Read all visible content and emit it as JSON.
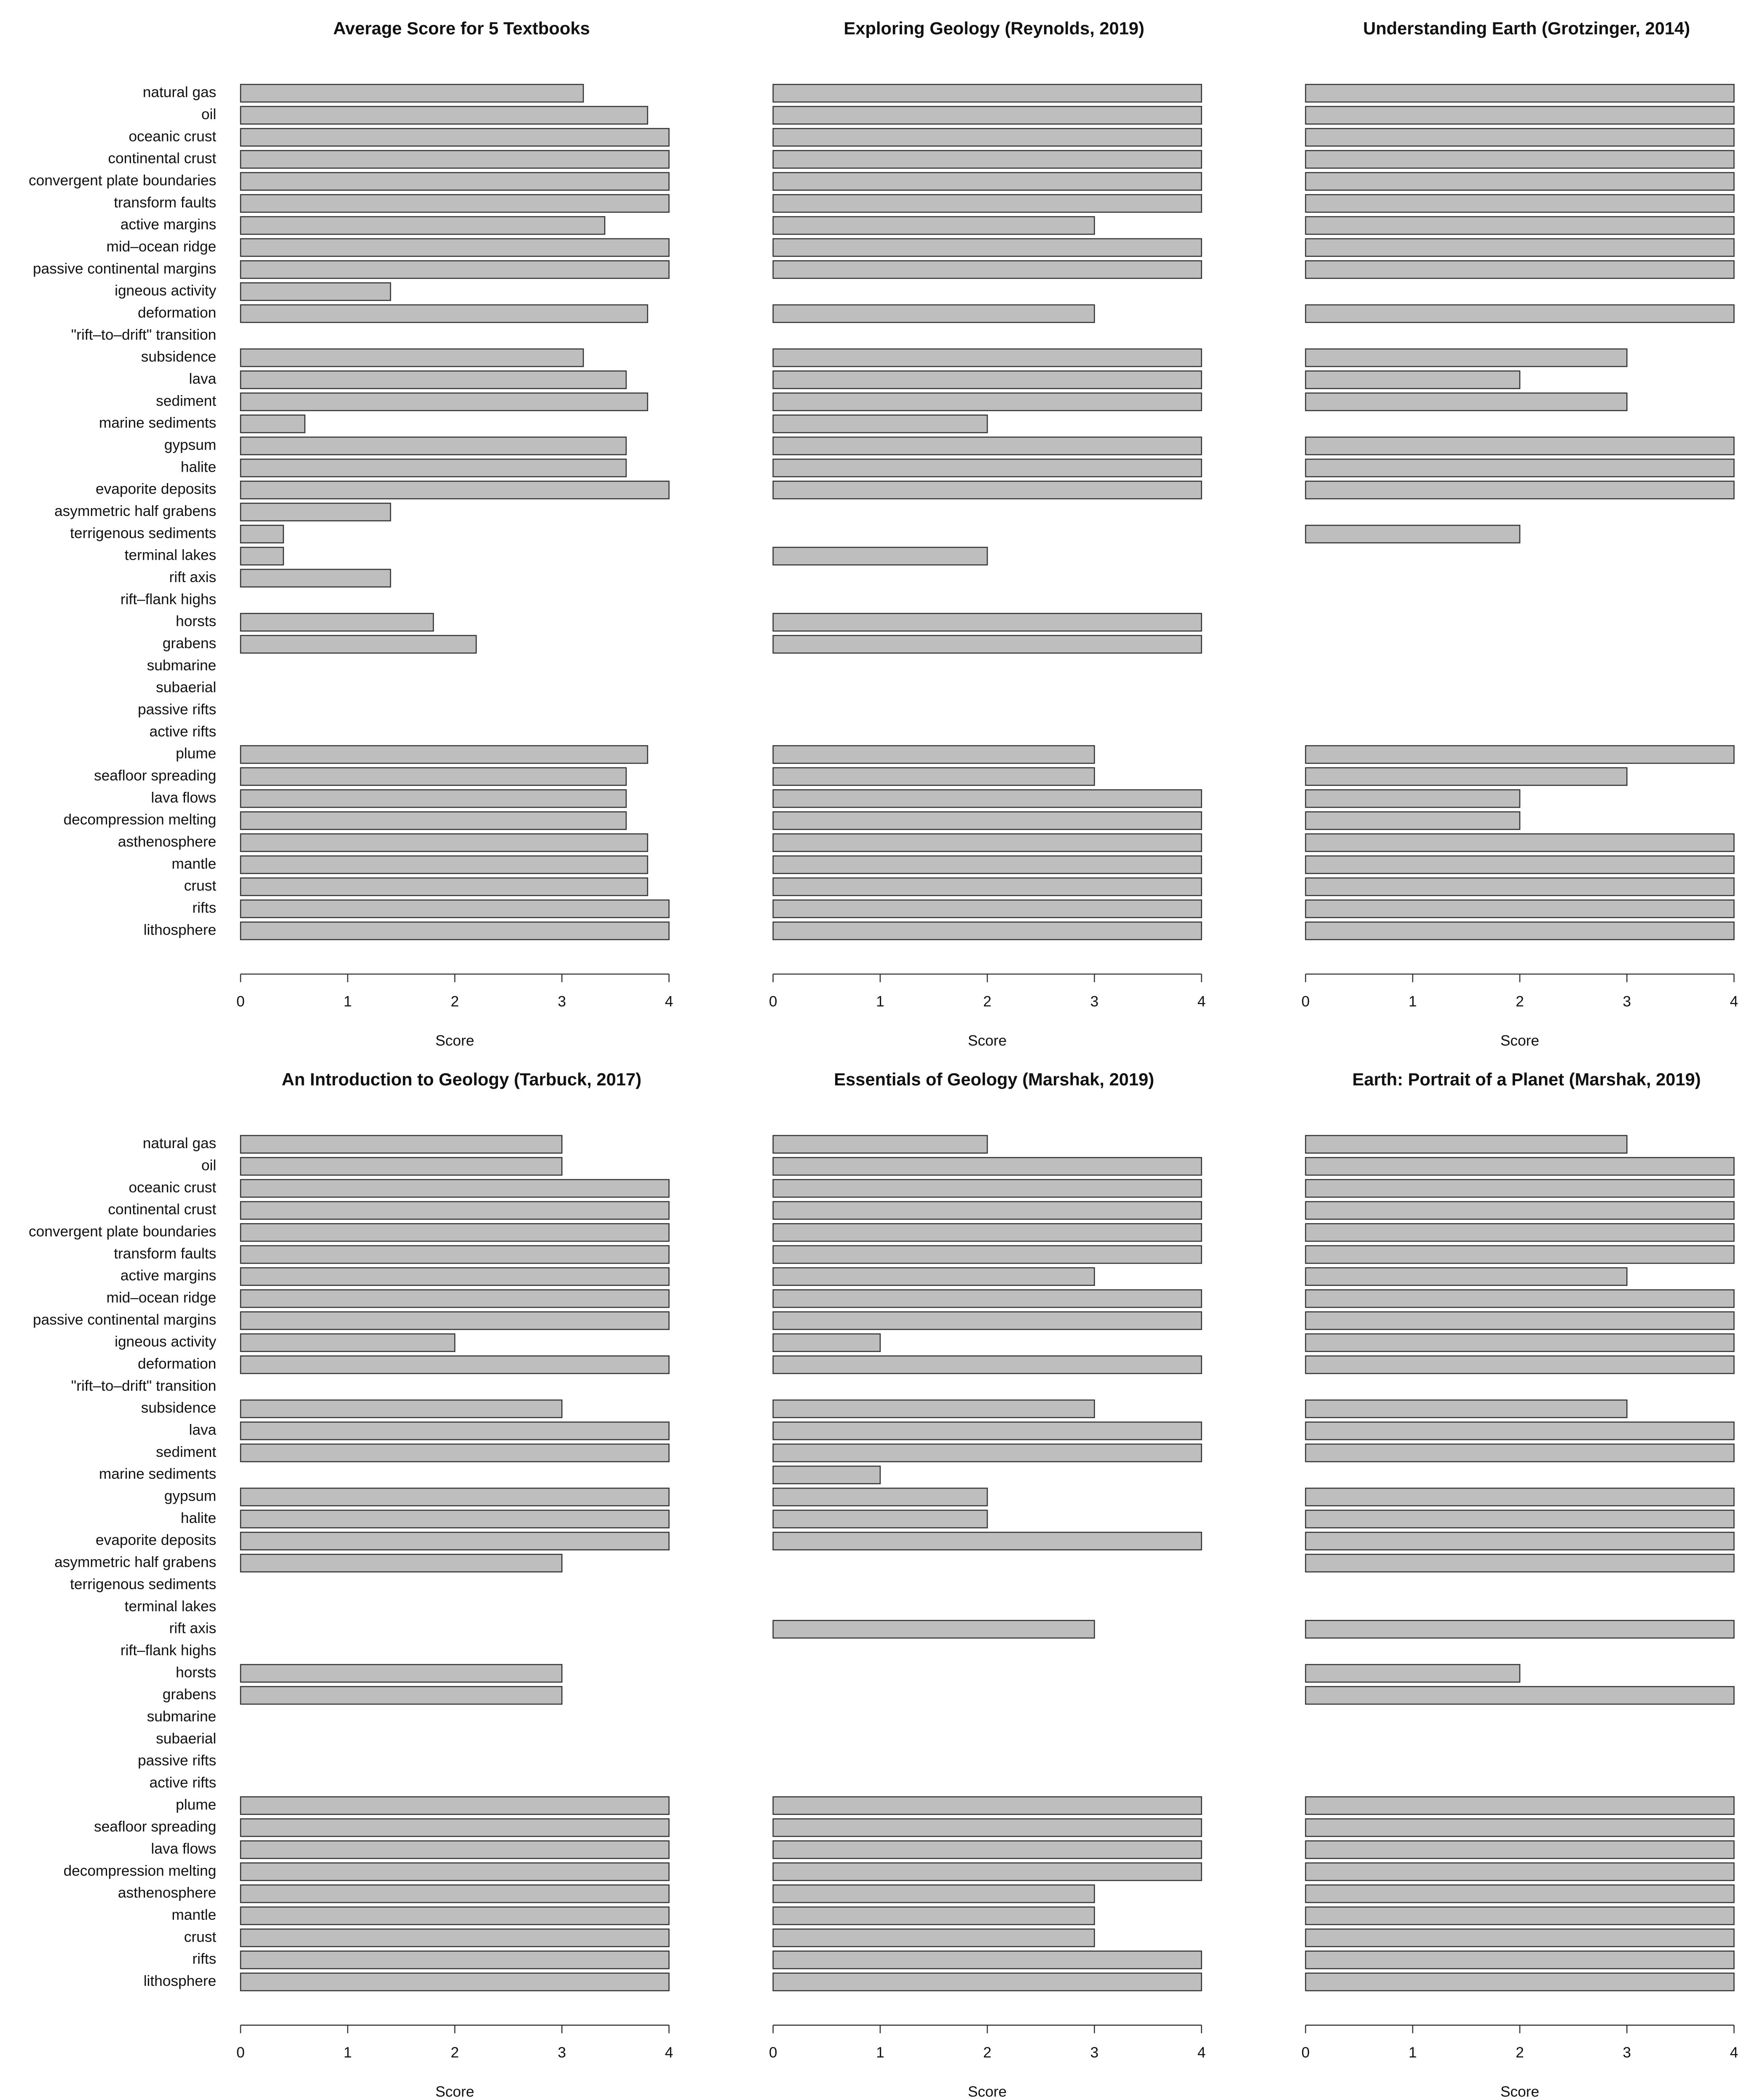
{
  "chart_data": [
    {
      "type": "bar",
      "title": "Average Score for 5 Textbooks",
      "categories": [
        "natural gas",
        "oil",
        "oceanic crust",
        "continental crust",
        "convergent plate boundaries",
        "transform faults",
        "active margins",
        "mid–ocean ridge",
        "passive continental margins",
        "igneous activity",
        "deformation",
        "\"rift–to–drift\" transition",
        "subsidence",
        "lava",
        "sediment",
        "marine sediments",
        "gypsum",
        "halite",
        "evaporite deposits",
        "asymmetric half grabens",
        "terrigenous sediments",
        "terminal lakes",
        "rift axis",
        "rift–flank highs",
        "horsts",
        "grabens",
        "submarine",
        "subaerial",
        "passive rifts",
        "active rifts",
        "plume",
        "seafloor spreading",
        "lava flows",
        "decompression melting",
        "asthenosphere",
        "mantle",
        "crust",
        "rifts",
        "lithosphere"
      ],
      "values": [
        3.2,
        3.8,
        4,
        4,
        4,
        4,
        3.4,
        4,
        4,
        1.4,
        3.8,
        0,
        3.2,
        3.6,
        3.8,
        0.6,
        3.6,
        3.6,
        4,
        1.4,
        0.4,
        0.4,
        1.4,
        0,
        1.8,
        2.2,
        0,
        0,
        0,
        0,
        3.8,
        3.6,
        3.6,
        3.6,
        3.8,
        3.8,
        3.8,
        4,
        4
      ],
      "xlim": [
        0,
        4
      ],
      "xticks": [
        0,
        1,
        2,
        3,
        4
      ],
      "xlabel": "Score",
      "color": "#bebebe"
    },
    {
      "type": "bar",
      "title": "Exploring Geology (Reynolds, 2019)",
      "values": [
        4,
        4,
        4,
        4,
        4,
        4,
        3,
        4,
        4,
        0,
        3,
        0,
        4,
        4,
        4,
        2,
        4,
        4,
        4,
        0,
        0,
        2,
        0,
        0,
        4,
        4,
        0,
        0,
        0,
        0,
        3,
        3,
        4,
        4,
        4,
        4,
        4,
        4,
        4
      ],
      "xlim": [
        0,
        4
      ],
      "xticks": [
        0,
        1,
        2,
        3,
        4
      ],
      "xlabel": "Score",
      "color": "#bebebe"
    },
    {
      "type": "bar",
      "title": "Understanding Earth (Grotzinger, 2014)",
      "values": [
        4,
        4,
        4,
        4,
        4,
        4,
        4,
        4,
        4,
        0,
        4,
        0,
        3,
        2,
        3,
        0,
        4,
        4,
        4,
        0,
        2,
        0,
        0,
        0,
        0,
        0,
        0,
        0,
        0,
        0,
        4,
        3,
        2,
        2,
        4,
        4,
        4,
        4,
        4
      ],
      "xlim": [
        0,
        4
      ],
      "xticks": [
        0,
        1,
        2,
        3,
        4
      ],
      "xlabel": "Score",
      "color": "#bebebe"
    },
    {
      "type": "bar",
      "title": "An Introduction to Geology (Tarbuck, 2017)",
      "categories": [
        "natural gas",
        "oil",
        "oceanic crust",
        "continental crust",
        "convergent plate boundaries",
        "transform faults",
        "active margins",
        "mid–ocean ridge",
        "passive continental margins",
        "igneous activity",
        "deformation",
        "\"rift–to–drift\" transition",
        "subsidence",
        "lava",
        "sediment",
        "marine sediments",
        "gypsum",
        "halite",
        "evaporite deposits",
        "asymmetric half grabens",
        "terrigenous sediments",
        "terminal lakes",
        "rift axis",
        "rift–flank highs",
        "horsts",
        "grabens",
        "submarine",
        "subaerial",
        "passive rifts",
        "active rifts",
        "plume",
        "seafloor spreading",
        "lava flows",
        "decompression melting",
        "asthenosphere",
        "mantle",
        "crust",
        "rifts",
        "lithosphere"
      ],
      "values": [
        3,
        3,
        4,
        4,
        4,
        4,
        4,
        4,
        4,
        2,
        4,
        0,
        3,
        4,
        4,
        0,
        4,
        4,
        4,
        3,
        0,
        0,
        0,
        0,
        3,
        3,
        0,
        0,
        0,
        0,
        4,
        4,
        4,
        4,
        4,
        4,
        4,
        4,
        4
      ],
      "xlim": [
        0,
        4
      ],
      "xticks": [
        0,
        1,
        2,
        3,
        4
      ],
      "xlabel": "Score",
      "color": "#bebebe"
    },
    {
      "type": "bar",
      "title": "Essentials of Geology (Marshak, 2019)",
      "values": [
        2,
        4,
        4,
        4,
        4,
        4,
        3,
        4,
        4,
        1,
        4,
        0,
        3,
        4,
        4,
        1,
        2,
        2,
        4,
        0,
        0,
        0,
        3,
        0,
        0,
        0,
        0,
        0,
        0,
        0,
        4,
        4,
        4,
        4,
        3,
        3,
        3,
        4,
        4
      ],
      "xlim": [
        0,
        4
      ],
      "xticks": [
        0,
        1,
        2,
        3,
        4
      ],
      "xlabel": "Score",
      "color": "#bebebe"
    },
    {
      "type": "bar",
      "title": "Earth: Portrait of a Planet (Marshak, 2019)",
      "values": [
        3,
        4,
        4,
        4,
        4,
        4,
        3,
        4,
        4,
        4,
        4,
        0,
        3,
        4,
        4,
        0,
        4,
        4,
        4,
        4,
        0,
        0,
        4,
        0,
        2,
        4,
        0,
        0,
        0,
        0,
        4,
        4,
        4,
        4,
        4,
        4,
        4,
        4,
        4
      ],
      "xlim": [
        0,
        4
      ],
      "xticks": [
        0,
        1,
        2,
        3,
        4
      ],
      "xlabel": "Score",
      "color": "#bebebe"
    }
  ]
}
